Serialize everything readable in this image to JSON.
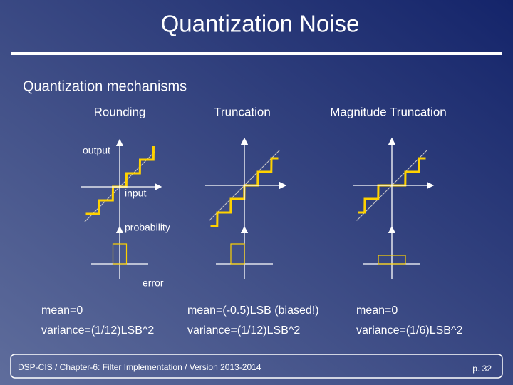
{
  "title": "Quantization Noise",
  "subtitle": "Quantization mechanisms",
  "axis_labels": {
    "output": "output",
    "input": "input",
    "probability": "probability",
    "error": "error"
  },
  "columns": [
    {
      "heading": "Rounding",
      "mean": "mean=0",
      "variance": "variance=(1/12)LSB^2"
    },
    {
      "heading": "Truncation",
      "mean": "mean=(-0.5)LSB (biased!)",
      "variance": "variance=(1/12)LSB^2"
    },
    {
      "heading": "Magnitude Truncation",
      "mean": "mean=0",
      "variance": "variance=(1/6)LSB^2"
    }
  ],
  "footer": {
    "text": "DSP-CIS  /  Chapter-6: Filter Implementation  /  Version 2013-2014",
    "page": "p. 32"
  }
}
